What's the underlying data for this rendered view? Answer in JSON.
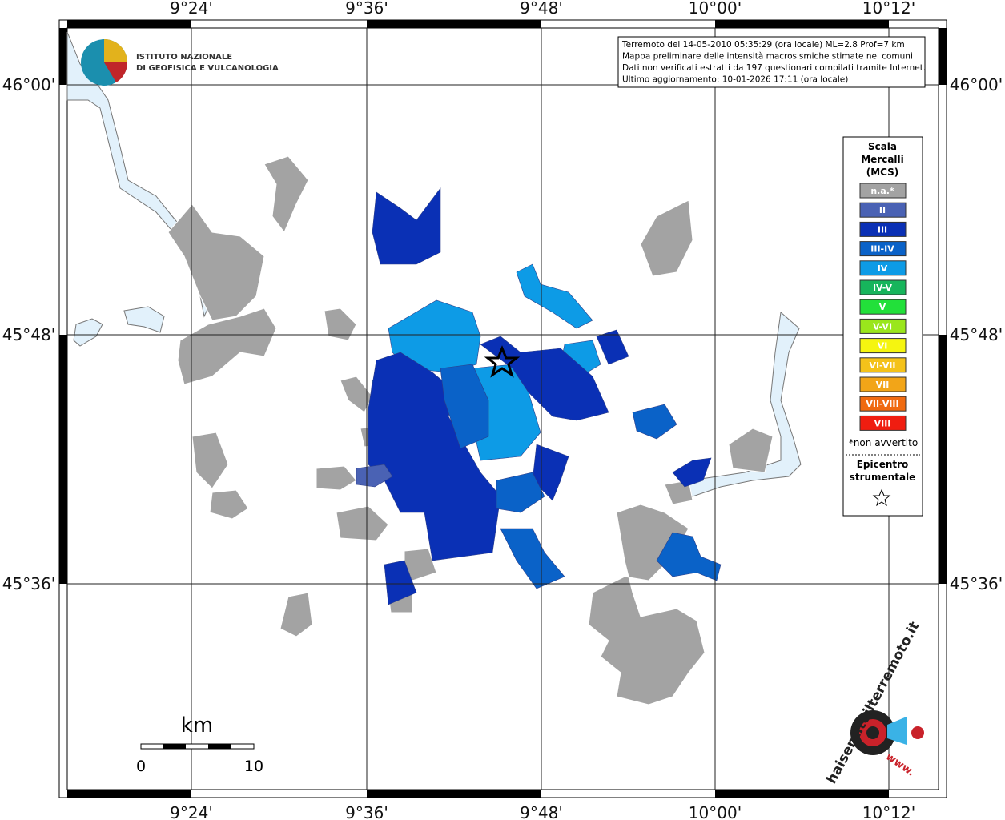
{
  "top_labels": [
    "9°24'",
    "9°36'",
    "9°48'",
    "10°00'",
    "10°12'"
  ],
  "left_labels": [
    "46°00'",
    "45°48'",
    "45°36'"
  ],
  "logo": {
    "line1": "ISTITUTO NAZIONALE",
    "line2": "DI GEOFISICA E VULCANOLOGIA"
  },
  "info": [
    "Terremoto del 14-05-2010 05:35:29 (ora locale) ML=2.8 Prof=7 km",
    "Mappa preliminare delle intensità macrosismiche stimate nei comuni",
    "Dati non verificati estratti da 197 questionari compilati tramite Internet.",
    "Ultimo aggiornamento: 10-01-2026 17:11 (ora locale)"
  ],
  "legend": {
    "title": [
      "Scala",
      "Mercalli",
      "(MCS)"
    ],
    "entries": [
      {
        "label": "n.a.*",
        "color": "#a3a3a3"
      },
      {
        "label": "II",
        "color": "#4a62b4"
      },
      {
        "label": "III",
        "color": "#0a30b5"
      },
      {
        "label": "III-IV",
        "color": "#0a62c8"
      },
      {
        "label": "IV",
        "color": "#0d9be6"
      },
      {
        "label": "IV-V",
        "color": "#17b55c"
      },
      {
        "label": "V",
        "color": "#22e03a"
      },
      {
        "label": "V-VI",
        "color": "#9ae61c"
      },
      {
        "label": "VI",
        "color": "#f5f510"
      },
      {
        "label": "VI-VII",
        "color": "#f4c21a"
      },
      {
        "label": "VII",
        "color": "#f2a518"
      },
      {
        "label": "VII-VIII",
        "color": "#f06a10"
      },
      {
        "label": "VIII",
        "color": "#f01d10"
      }
    ],
    "note": "*non avvertito",
    "epicentre": [
      "Epicentro",
      "strumentale"
    ]
  },
  "scale": {
    "unit": "km",
    "start": "0",
    "end": "10"
  },
  "badge": {
    "text": "haisentitoilterremoto.it",
    "www": "www."
  }
}
